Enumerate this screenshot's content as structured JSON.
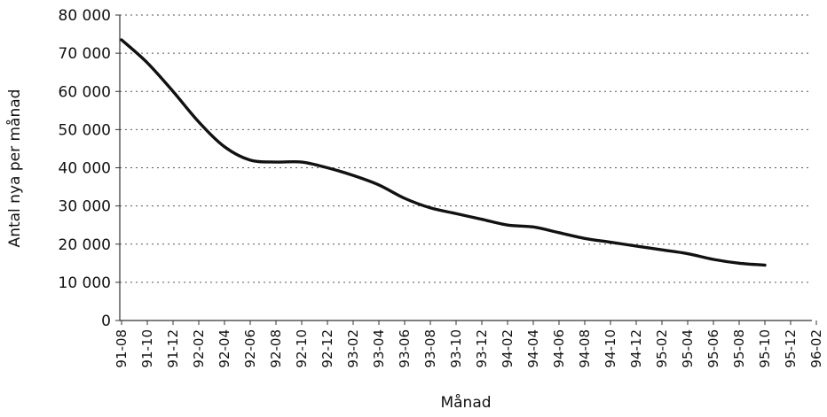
{
  "chart_data": {
    "type": "line",
    "title": "",
    "xlabel": "Månad",
    "ylabel": "Antal nya per månad",
    "ylim": [
      0,
      80000
    ],
    "yticks": [
      0,
      10000,
      20000,
      30000,
      40000,
      50000,
      60000,
      70000,
      80000
    ],
    "ytick_labels": [
      "0",
      "10 000",
      "20 000",
      "30 000",
      "40 000",
      "50 000",
      "60 000",
      "70 000",
      "80 000"
    ],
    "x_tick_labels": [
      "91-08",
      "91-10",
      "91-12",
      "92-02",
      "92-04",
      "92-06",
      "92-08",
      "92-10",
      "92-12",
      "93-02",
      "93-04",
      "93-06",
      "93-08",
      "93-10",
      "93-12",
      "94-02",
      "94-04",
      "94-06",
      "94-08",
      "94-10",
      "94-12",
      "95-02",
      "95-04",
      "95-06",
      "95-08",
      "95-10",
      "95-12",
      "96-02"
    ],
    "grid": "horizontal dotted",
    "series_color": "#111111",
    "series": [
      {
        "values": [
          73500,
          67500,
          60000,
          52000,
          45500,
          42000,
          41500,
          41500,
          40000,
          38000,
          35500,
          32000,
          29500,
          28000,
          26500,
          25000,
          24500,
          23000,
          21500,
          20500,
          19500,
          18500,
          17500,
          16000,
          15000,
          14500
        ]
      }
    ],
    "series_x_index": [
      0,
      1,
      2,
      3,
      4,
      5,
      6,
      7,
      8,
      9,
      10,
      11,
      12,
      13,
      14,
      15,
      16,
      17,
      18,
      19,
      20,
      21,
      22,
      23,
      24,
      25
    ]
  }
}
